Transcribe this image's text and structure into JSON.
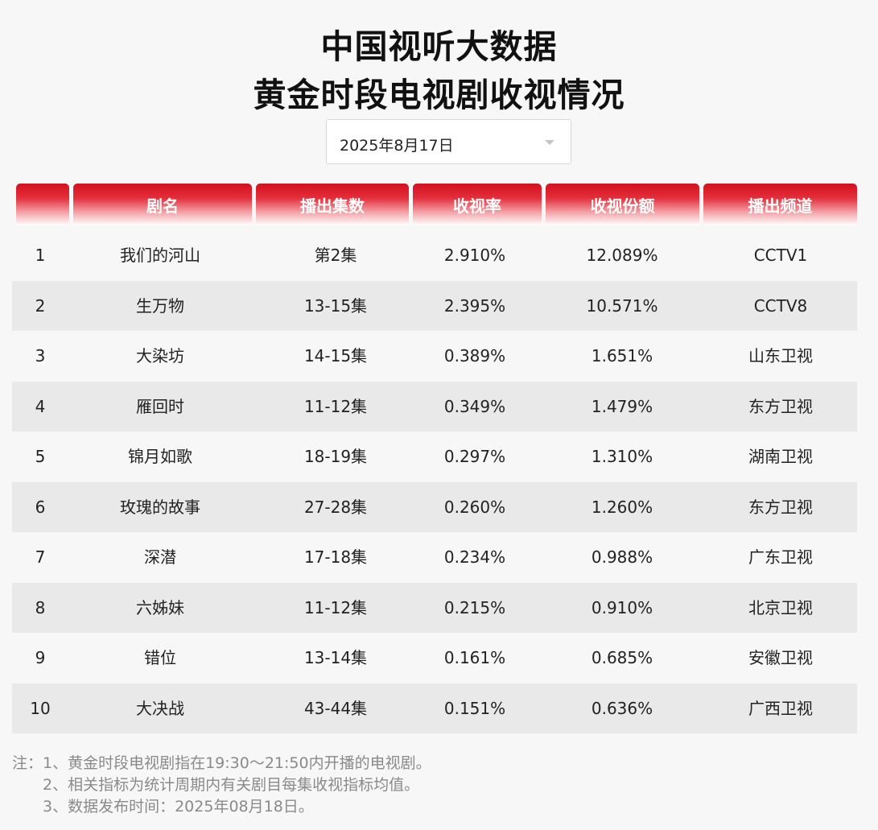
{
  "title_line1": "中国视听大数据",
  "title_line2": "黄金时段电视剧收视情况",
  "date_select": {
    "value": "2025年8月17日"
  },
  "table": {
    "headers": [
      "",
      "剧名",
      "播出集数",
      "收视率",
      "收视份额",
      "播出频道"
    ],
    "rows": [
      {
        "rank": "1",
        "name": "我们的河山",
        "episodes": "第2集",
        "rating": "2.910%",
        "share": "12.089%",
        "channel": "CCTV1"
      },
      {
        "rank": "2",
        "name": "生万物",
        "episodes": "13-15集",
        "rating": "2.395%",
        "share": "10.571%",
        "channel": "CCTV8"
      },
      {
        "rank": "3",
        "name": "大染坊",
        "episodes": "14-15集",
        "rating": "0.389%",
        "share": "1.651%",
        "channel": "山东卫视"
      },
      {
        "rank": "4",
        "name": "雁回时",
        "episodes": "11-12集",
        "rating": "0.349%",
        "share": "1.479%",
        "channel": "东方卫视"
      },
      {
        "rank": "5",
        "name": "锦月如歌",
        "episodes": "18-19集",
        "rating": "0.297%",
        "share": "1.310%",
        "channel": "湖南卫视"
      },
      {
        "rank": "6",
        "name": "玫瑰的故事",
        "episodes": "27-28集",
        "rating": "0.260%",
        "share": "1.260%",
        "channel": "东方卫视"
      },
      {
        "rank": "7",
        "name": "深潜",
        "episodes": "17-18集",
        "rating": "0.234%",
        "share": "0.988%",
        "channel": "广东卫视"
      },
      {
        "rank": "8",
        "name": "六姊妹",
        "episodes": "11-12集",
        "rating": "0.215%",
        "share": "0.910%",
        "channel": "北京卫视"
      },
      {
        "rank": "9",
        "name": "错位",
        "episodes": "13-14集",
        "rating": "0.161%",
        "share": "0.685%",
        "channel": "安徽卫视"
      },
      {
        "rank": "10",
        "name": "大决战",
        "episodes": "43-44集",
        "rating": "0.151%",
        "share": "0.636%",
        "channel": "广西卫视"
      }
    ]
  },
  "notes": [
    "注：1、黄金时段电视剧指在19:30～21:50内开播的电视剧。",
    "2、相关指标为统计周期内有关剧目每集收视指标均值。",
    "3、数据发布时间：2025年08月18日。"
  ],
  "colors": {
    "header_red": "#d4101e",
    "alt_row": "#e9e9e9",
    "background": "#f7f7f7"
  }
}
